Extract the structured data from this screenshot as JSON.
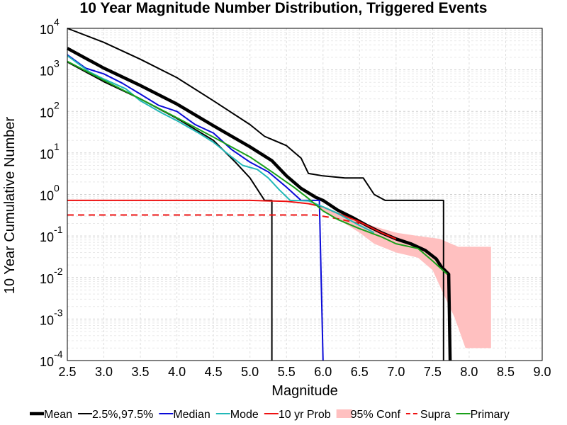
{
  "chart_data": {
    "type": "line",
    "title": "10 Year Magnitude Number Distribution, Triggered Events",
    "xlabel": "Magnitude",
    "ylabel": "10 Year Cumulative Number",
    "xlim": [
      2.5,
      9.0
    ],
    "ylim": [
      0.0001,
      10000
    ],
    "yscale": "log",
    "grid": true,
    "legend_placement": "bottom",
    "x_ticks": [
      "2.5",
      "3.0",
      "3.5",
      "4.0",
      "4.5",
      "5.0",
      "5.5",
      "6.0",
      "6.5",
      "7.0",
      "7.5",
      "8.0",
      "8.5",
      "9.0"
    ],
    "y_ticks": [
      {
        "base": "10",
        "exp": "-4",
        "value": 0.0001
      },
      {
        "base": "10",
        "exp": "-3",
        "value": 0.001
      },
      {
        "base": "10",
        "exp": "-2",
        "value": 0.01
      },
      {
        "base": "10",
        "exp": "-1",
        "value": 0.1
      },
      {
        "base": "10",
        "exp": "0",
        "value": 1
      },
      {
        "base": "10",
        "exp": "1",
        "value": 10
      },
      {
        "base": "10",
        "exp": "2",
        "value": 100
      },
      {
        "base": "10",
        "exp": "3",
        "value": 1000
      },
      {
        "base": "10",
        "exp": "4",
        "value": 10000
      }
    ],
    "series": [
      {
        "name": "Mean",
        "color": "#000000",
        "width": 4.5,
        "style": "solid",
        "points": [
          [
            2.5,
            3300
          ],
          [
            3.0,
            1100
          ],
          [
            3.5,
            420
          ],
          [
            4.0,
            150
          ],
          [
            4.5,
            45
          ],
          [
            5.0,
            14
          ],
          [
            5.3,
            6.5
          ],
          [
            5.5,
            2.8
          ],
          [
            5.7,
            1.4
          ],
          [
            5.9,
            0.85
          ],
          [
            6.0,
            0.72
          ],
          [
            6.2,
            0.42
          ],
          [
            6.4,
            0.28
          ],
          [
            6.6,
            0.18
          ],
          [
            6.8,
            0.12
          ],
          [
            7.0,
            0.085
          ],
          [
            7.2,
            0.065
          ],
          [
            7.4,
            0.045
          ],
          [
            7.55,
            0.028
          ],
          [
            7.62,
            0.018
          ],
          [
            7.72,
            0.012
          ],
          [
            7.74,
            8e-05
          ]
        ]
      },
      {
        "name": "2.5%,97.5%",
        "color": "#000000",
        "width": 2,
        "style": "solid",
        "points": [
          [
            2.5,
            14000
          ],
          [
            3.0,
            4600
          ],
          [
            3.5,
            1800
          ],
          [
            4.0,
            650
          ],
          [
            4.5,
            180
          ],
          [
            5.0,
            48
          ],
          [
            5.2,
            25
          ],
          [
            5.5,
            15
          ],
          [
            5.7,
            7.5
          ],
          [
            5.8,
            3.2
          ],
          [
            6.0,
            2.8
          ],
          [
            6.3,
            2.5
          ],
          [
            6.55,
            2.5
          ],
          [
            6.7,
            1.0
          ],
          [
            6.85,
            0.72
          ],
          [
            7.65,
            0.72
          ],
          [
            7.65,
            8e-05
          ]
        ]
      },
      {
        "name": "2.5%,97.5%",
        "color": "#000000",
        "width": 2,
        "style": "solid",
        "points": [
          [
            2.5,
            1550
          ],
          [
            3.0,
            520
          ],
          [
            3.5,
            200
          ],
          [
            4.0,
            68
          ],
          [
            4.5,
            20
          ],
          [
            4.8,
            6
          ],
          [
            5.0,
            2.5
          ],
          [
            5.2,
            0.72
          ],
          [
            5.3,
            0.72
          ],
          [
            5.3,
            8e-05
          ]
        ]
      },
      {
        "name": "Median",
        "color": "#0a0ad8",
        "width": 2,
        "style": "solid",
        "points": [
          [
            2.5,
            2300
          ],
          [
            2.75,
            1100
          ],
          [
            3.0,
            800
          ],
          [
            3.25,
            480
          ],
          [
            3.5,
            260
          ],
          [
            3.75,
            140
          ],
          [
            4.0,
            100
          ],
          [
            4.25,
            48
          ],
          [
            4.5,
            30
          ],
          [
            4.75,
            12
          ],
          [
            5.0,
            6
          ],
          [
            5.25,
            3.5
          ],
          [
            5.5,
            1.5
          ],
          [
            5.7,
            0.72
          ],
          [
            5.95,
            0.72
          ],
          [
            6.0,
            8e-05
          ]
        ]
      },
      {
        "name": "Mode",
        "color": "#22b8b8",
        "width": 2,
        "style": "solid",
        "points": [
          [
            2.5,
            2200
          ],
          [
            2.8,
            900
          ],
          [
            3.0,
            600
          ],
          [
            3.3,
            350
          ],
          [
            3.5,
            180
          ],
          [
            3.8,
            90
          ],
          [
            4.0,
            60
          ],
          [
            4.3,
            30
          ],
          [
            4.5,
            18
          ],
          [
            4.75,
            8
          ],
          [
            4.9,
            5
          ],
          [
            5.1,
            4
          ],
          [
            5.25,
            2.5
          ],
          [
            5.4,
            1.3
          ],
          [
            5.55,
            0.72
          ],
          [
            5.8,
            0.7
          ],
          [
            6.0,
            0.5
          ],
          [
            6.2,
            0.35
          ],
          [
            6.5,
            0.18
          ],
          [
            6.7,
            0.12
          ]
        ]
      },
      {
        "name": "Primary",
        "color": "#1aa01a",
        "width": 2,
        "style": "solid",
        "points": [
          [
            2.5,
            1600
          ],
          [
            3.0,
            560
          ],
          [
            3.5,
            200
          ],
          [
            4.0,
            70
          ],
          [
            4.5,
            24
          ],
          [
            5.0,
            8
          ],
          [
            5.3,
            3.5
          ],
          [
            5.6,
            1.5
          ],
          [
            5.8,
            0.8
          ],
          [
            6.0,
            0.4
          ],
          [
            6.2,
            0.25
          ],
          [
            6.5,
            0.15
          ],
          [
            6.8,
            0.095
          ],
          [
            7.0,
            0.065
          ],
          [
            7.3,
            0.05
          ],
          [
            7.5,
            0.025
          ],
          [
            7.7,
            0.012
          ]
        ]
      },
      {
        "name": "10 yr Prob",
        "color": "#ee1111",
        "width": 2,
        "style": "solid",
        "points": [
          [
            2.5,
            0.72
          ],
          [
            5.0,
            0.72
          ],
          [
            5.5,
            0.68
          ],
          [
            5.8,
            0.6
          ],
          [
            6.0,
            0.5
          ],
          [
            6.2,
            0.35
          ],
          [
            6.5,
            0.22
          ],
          [
            6.8,
            0.12
          ],
          [
            7.0,
            0.085
          ]
        ]
      },
      {
        "name": "Supra",
        "color": "#ee1111",
        "width": 2,
        "style": "dashed",
        "points": [
          [
            2.5,
            0.32
          ],
          [
            5.9,
            0.32
          ],
          [
            6.2,
            0.26
          ],
          [
            6.5,
            0.2
          ]
        ]
      }
    ],
    "confidence_band": {
      "name": "95% Conf",
      "color": "#ffc0c0",
      "upper": [
        [
          5.95,
          0.55
        ],
        [
          6.1,
          0.42
        ],
        [
          6.3,
          0.32
        ],
        [
          6.5,
          0.22
        ],
        [
          6.7,
          0.17
        ],
        [
          7.0,
          0.12
        ],
        [
          7.3,
          0.1
        ],
        [
          7.6,
          0.085
        ],
        [
          7.85,
          0.055
        ],
        [
          8.3,
          0.055
        ]
      ],
      "lower": [
        [
          5.95,
          0.45
        ],
        [
          6.1,
          0.32
        ],
        [
          6.3,
          0.2
        ],
        [
          6.5,
          0.12
        ],
        [
          6.7,
          0.065
        ],
        [
          7.0,
          0.04
        ],
        [
          7.3,
          0.03
        ],
        [
          7.5,
          0.015
        ],
        [
          7.65,
          0.004
        ],
        [
          7.8,
          0.0011
        ],
        [
          7.95,
          0.0002
        ],
        [
          8.3,
          0.0002
        ]
      ]
    },
    "legend": [
      {
        "label": "Mean",
        "color": "#000000",
        "width": 4.5,
        "style": "solid",
        "kind": "line"
      },
      {
        "label": "2.5%,97.5%",
        "color": "#000000",
        "width": 2,
        "style": "solid",
        "kind": "line"
      },
      {
        "label": "Median",
        "color": "#0a0ad8",
        "width": 2,
        "style": "solid",
        "kind": "line"
      },
      {
        "label": "Mode",
        "color": "#22b8b8",
        "width": 2,
        "style": "solid",
        "kind": "line"
      },
      {
        "label": "10 yr Prob",
        "color": "#ee1111",
        "width": 2,
        "style": "solid",
        "kind": "line"
      },
      {
        "label": "95% Conf",
        "color": "#ffc0c0",
        "width": 10,
        "style": "solid",
        "kind": "patch"
      },
      {
        "label": "Supra",
        "color": "#ee1111",
        "width": 2,
        "style": "dashed",
        "kind": "line"
      },
      {
        "label": "Primary",
        "color": "#1aa01a",
        "width": 2,
        "style": "solid",
        "kind": "line"
      }
    ]
  }
}
